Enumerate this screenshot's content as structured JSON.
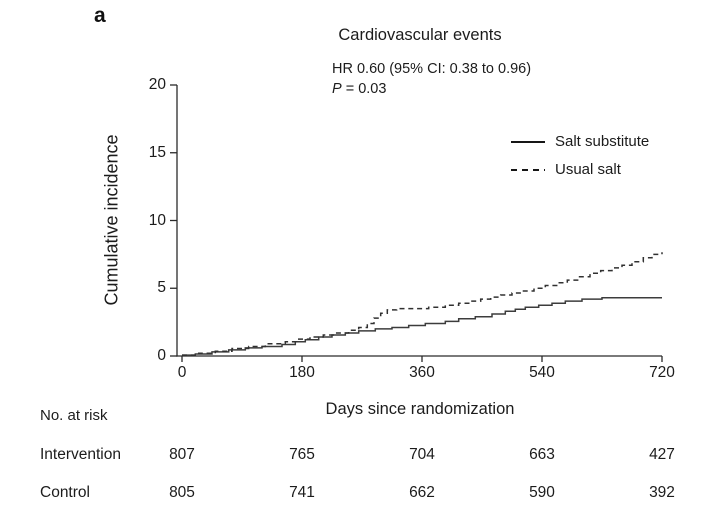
{
  "panel_label": "a",
  "title": "Cardiovascular events",
  "annotation": {
    "hr_line": "HR 0.60 (95% CI: 0.38 to 0.96)",
    "p_label": "P",
    "p_rest": " = 0.03"
  },
  "legend": [
    {
      "label": "Salt substitute",
      "style": "solid"
    },
    {
      "label": "Usual salt",
      "style": "dashed"
    }
  ],
  "axes": {
    "y_label": "Cumulative incidence",
    "x_label": "Days since randomization",
    "y_ticks": [
      0,
      5,
      10,
      15,
      20
    ],
    "x_ticks": [
      0,
      180,
      360,
      540,
      720
    ]
  },
  "risk_table": {
    "header": "No. at risk",
    "rows": [
      {
        "label": "Intervention",
        "values": [
          807,
          765,
          704,
          663,
          427
        ]
      },
      {
        "label": "Control",
        "values": [
          805,
          741,
          662,
          590,
          392
        ]
      }
    ]
  },
  "colors": {
    "line": "#343434",
    "axis": "#2b2b2b",
    "text": "#1c1c1c"
  },
  "chart_data": {
    "type": "line",
    "subtype": "step-cumulative-incidence",
    "title": "Cardiovascular events",
    "xlabel": "Days since randomization",
    "ylabel": "Cumulative incidence",
    "xlim": [
      0,
      720
    ],
    "ylim": [
      0,
      20
    ],
    "grid": false,
    "legend_position": "upper right inside",
    "annotation": "HR 0.60 (95% CI: 0.38 to 0.96), P = 0.03",
    "series": [
      {
        "name": "Salt substitute",
        "line_style": "solid",
        "points": [
          [
            0,
            0.07
          ],
          [
            20,
            0.15
          ],
          [
            45,
            0.3
          ],
          [
            70,
            0.45
          ],
          [
            95,
            0.6
          ],
          [
            120,
            0.7
          ],
          [
            150,
            0.85
          ],
          [
            170,
            1.05
          ],
          [
            185,
            1.2
          ],
          [
            205,
            1.4
          ],
          [
            225,
            1.55
          ],
          [
            245,
            1.7
          ],
          [
            265,
            1.85
          ],
          [
            290,
            2.0
          ],
          [
            315,
            2.1
          ],
          [
            340,
            2.25
          ],
          [
            365,
            2.4
          ],
          [
            395,
            2.55
          ],
          [
            415,
            2.75
          ],
          [
            440,
            2.9
          ],
          [
            465,
            3.1
          ],
          [
            485,
            3.3
          ],
          [
            500,
            3.45
          ],
          [
            515,
            3.6
          ],
          [
            535,
            3.75
          ],
          [
            555,
            3.9
          ],
          [
            575,
            4.05
          ],
          [
            600,
            4.2
          ],
          [
            630,
            4.3
          ],
          [
            720,
            4.3
          ]
        ]
      },
      {
        "name": "Usual salt",
        "line_style": "dashed",
        "points": [
          [
            0,
            0.07
          ],
          [
            25,
            0.2
          ],
          [
            50,
            0.35
          ],
          [
            75,
            0.55
          ],
          [
            100,
            0.7
          ],
          [
            125,
            0.9
          ],
          [
            155,
            1.05
          ],
          [
            172,
            1.25
          ],
          [
            192,
            1.4
          ],
          [
            212,
            1.55
          ],
          [
            232,
            1.7
          ],
          [
            250,
            1.9
          ],
          [
            265,
            2.1
          ],
          [
            278,
            2.4
          ],
          [
            288,
            2.8
          ],
          [
            298,
            3.15
          ],
          [
            308,
            3.4
          ],
          [
            322,
            3.5
          ],
          [
            370,
            3.6
          ],
          [
            395,
            3.75
          ],
          [
            415,
            3.9
          ],
          [
            432,
            4.05
          ],
          [
            448,
            4.2
          ],
          [
            463,
            4.35
          ],
          [
            478,
            4.5
          ],
          [
            495,
            4.65
          ],
          [
            510,
            4.8
          ],
          [
            528,
            5.0
          ],
          [
            545,
            5.2
          ],
          [
            562,
            5.4
          ],
          [
            578,
            5.6
          ],
          [
            595,
            5.85
          ],
          [
            612,
            6.1
          ],
          [
            628,
            6.3
          ],
          [
            645,
            6.5
          ],
          [
            660,
            6.7
          ],
          [
            675,
            6.95
          ],
          [
            692,
            7.25
          ],
          [
            705,
            7.5
          ],
          [
            720,
            7.65
          ]
        ]
      }
    ],
    "risk_table": {
      "header": "No. at risk",
      "time_points": [
        0,
        180,
        360,
        540,
        720
      ],
      "rows": [
        {
          "label": "Intervention",
          "values": [
            807,
            765,
            704,
            663,
            427
          ]
        },
        {
          "label": "Control",
          "values": [
            805,
            741,
            662,
            590,
            392
          ]
        }
      ]
    }
  }
}
